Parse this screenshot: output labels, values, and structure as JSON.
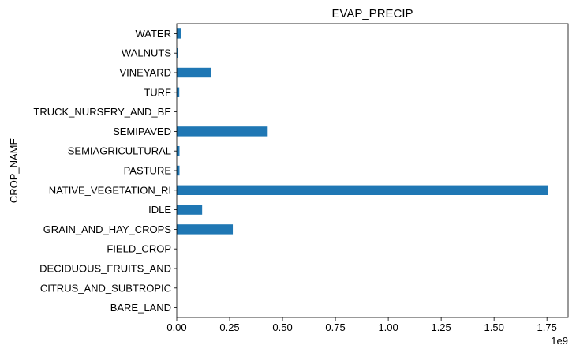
{
  "chart_data": {
    "type": "bar",
    "orientation": "horizontal",
    "title": "EVAP_PRECIP",
    "ylabel": "CROP_NAME",
    "xlabel": "",
    "x_offset_label": "1e9",
    "categories": [
      "BARE_LAND",
      "CITRUS_AND_SUBTROPIC",
      "DECIDUOUS_FRUITS_AND",
      "FIELD_CROP",
      "GRAIN_AND_HAY_CROPS",
      "IDLE",
      "NATIVE_VEGETATION_RI",
      "PASTURE",
      "SEMIAGRICULTURAL",
      "SEMIPAVED",
      "TRUCK_NURSERY_AND_BE",
      "TURF",
      "VINEYARD",
      "WALNUTS",
      "WATER"
    ],
    "values": [
      0.0,
      0.0,
      0.0,
      0.0,
      0.265,
      0.12,
      1.755,
      0.013,
      0.013,
      0.43,
      0.0,
      0.012,
      0.163,
      0.005,
      0.02
    ],
    "xlim": [
      0,
      1.85
    ],
    "xticks": [
      "0.00",
      "0.25",
      "0.50",
      "0.75",
      "1.00",
      "1.25",
      "1.50",
      "1.75"
    ],
    "bar_color": "#1f77b4",
    "grid": false
  }
}
